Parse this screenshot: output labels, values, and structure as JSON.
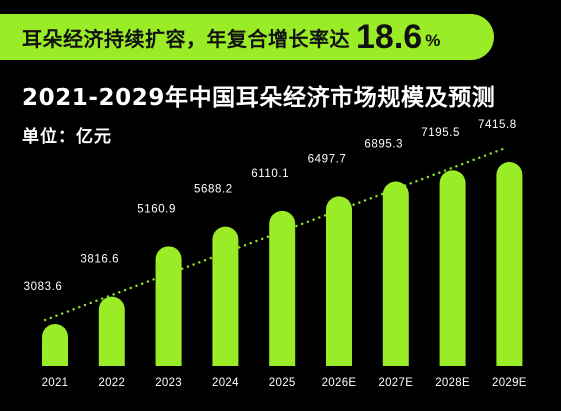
{
  "banner": {
    "text": "耳朵经济持续扩容，年复合增长率达",
    "growth_value": "18.6",
    "growth_unit": "%"
  },
  "title": "2021-2029年中国耳朵经济市场规模及预测",
  "unit_label": "单位：亿元",
  "colors": {
    "accent": "#9aec27",
    "background": "#000000",
    "text": "#ffffff"
  },
  "chart_data": {
    "type": "bar",
    "title": "2021-2029年中国耳朵经济市场规模及预测",
    "ylabel": "单位：亿元",
    "categories": [
      "2021",
      "2022",
      "2023",
      "2024",
      "2025",
      "2026E",
      "2027E",
      "2028E",
      "2029E"
    ],
    "values": [
      3083.6,
      3816.6,
      5160.9,
      5688.2,
      6110.1,
      6497.7,
      6895.3,
      7195.5,
      7415.8
    ],
    "value_labels": [
      "3083.6",
      "3816.6",
      "5160.9",
      "5688.2",
      "6110.1",
      "6497.7",
      "6895.3",
      "7195.5",
      "7415.8"
    ],
    "trend_line": "dotted",
    "grid": false,
    "legend": "none"
  }
}
